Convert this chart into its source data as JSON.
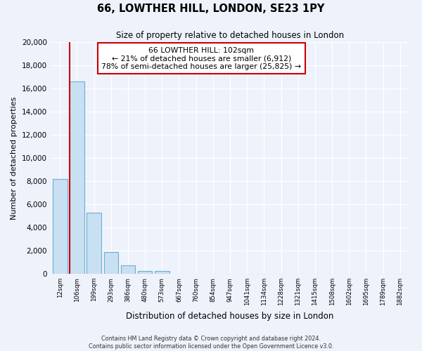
{
  "title": "66, LOWTHER HILL, LONDON, SE23 1PY",
  "subtitle": "Size of property relative to detached houses in London",
  "xlabel": "Distribution of detached houses by size in London",
  "ylabel": "Number of detached properties",
  "bar_labels": [
    "12sqm",
    "106sqm",
    "199sqm",
    "293sqm",
    "386sqm",
    "480sqm",
    "573sqm",
    "667sqm",
    "760sqm",
    "854sqm",
    "947sqm",
    "1041sqm",
    "1134sqm",
    "1228sqm",
    "1321sqm",
    "1415sqm",
    "1508sqm",
    "1602sqm",
    "1695sqm",
    "1789sqm",
    "1882sqm"
  ],
  "bar_values": [
    8200,
    16600,
    5300,
    1850,
    750,
    250,
    250,
    0,
    0,
    0,
    0,
    0,
    0,
    0,
    0,
    0,
    0,
    0,
    0,
    0,
    0
  ],
  "bar_color": "#c9dff2",
  "bar_edge_color": "#6aaed6",
  "ylim": [
    0,
    20000
  ],
  "yticks": [
    0,
    2000,
    4000,
    6000,
    8000,
    10000,
    12000,
    14000,
    16000,
    18000,
    20000
  ],
  "property_line_color": "#cc0000",
  "annotation_box_text_line1": "66 LOWTHER HILL: 102sqm",
  "annotation_box_text_line2": "← 21% of detached houses are smaller (6,912)",
  "annotation_box_text_line3": "78% of semi-detached houses are larger (25,825) →",
  "annotation_box_color": "#ffffff",
  "annotation_box_edge_color": "#cc0000",
  "footer_line1": "Contains HM Land Registry data © Crown copyright and database right 2024.",
  "footer_line2": "Contains public sector information licensed under the Open Government Licence v3.0.",
  "background_color": "#eef2fb",
  "plot_background_color": "#eef2fb",
  "grid_color": "#ffffff"
}
